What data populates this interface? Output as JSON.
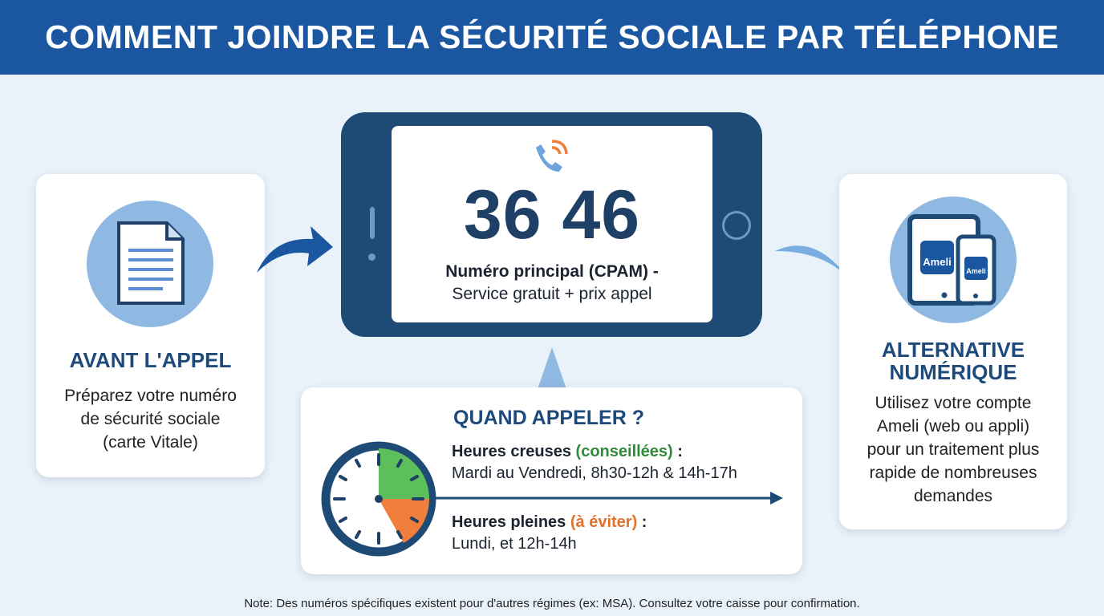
{
  "header": {
    "title": "COMMENT JOINDRE LA SÉCURITÉ SOCIALE PAR TÉLÉPHONE"
  },
  "before_call": {
    "icon": "document-icon",
    "title": "AVANT L'APPEL",
    "text": [
      "Préparez votre numéro",
      "de sécurité sociale",
      "(carte Vitale)"
    ]
  },
  "phone": {
    "icon": "phone-call-icon",
    "number": "36 46",
    "label": "Numéro principal (CPAM) -",
    "sublabel": "Service gratuit + prix appel"
  },
  "when": {
    "title": "QUAND APPELER ?",
    "off_peak_label": "Heures creuses",
    "off_peak_tag": "(conseillées)",
    "off_peak_hours": "Mardi au Vendredi, 8h30-12h & 14h-17h",
    "peak_label": "Heures pleines",
    "peak_tag": "(à éviter)",
    "peak_hours": "Lundi, et 12h-14h",
    "colon": " :"
  },
  "digital": {
    "icon": "devices-icon",
    "app_label": "Ameli",
    "title": [
      "ALTERNATIVE",
      "NUMÉRIQUE"
    ],
    "text": [
      "Utilisez votre compte",
      "Ameli (web ou appli)",
      "pour un traitement plus",
      "rapide de nombreuses",
      "demandes"
    ]
  },
  "note": "Note: Des numéros spécifiques existent pour d'autres régimes (ex: MSA). Consultez votre caisse pour confirmation.",
  "colors": {
    "header": "#1b56a0",
    "navy": "#1e4a76",
    "green": "#5cbf5c",
    "orange": "#ef7f3a",
    "light_blue": "#8fb9e2"
  }
}
